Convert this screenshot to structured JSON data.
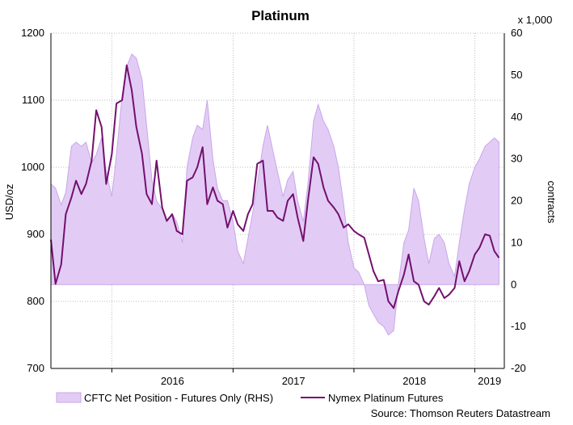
{
  "chart_data": {
    "type": "area",
    "title": "Platinum",
    "ylabel_left": "USD/oz",
    "ylabel_right": "contracts",
    "right_axis_multiplier": "x 1,000",
    "source": "Source: Thomson Reuters Datastream",
    "ylim_left": [
      700,
      1200
    ],
    "ylim_right": [
      -20,
      60
    ],
    "yticks_left": [
      "1200",
      "1100",
      "1000",
      "900",
      "800",
      "700"
    ],
    "yticks_right": [
      "60",
      "50",
      "40",
      "30",
      "20",
      "10",
      "0",
      "-10",
      "-20"
    ],
    "xlim": [
      "2015-07-01",
      "2019-03-31"
    ],
    "x_year_labels": [
      {
        "label": "2016",
        "date": "2016-01-01"
      },
      {
        "label": "2017",
        "date": "2017-01-01"
      },
      {
        "label": "2018",
        "date": "2018-01-01"
      },
      {
        "label": "2019",
        "date": "2019-01-01"
      }
    ],
    "grid": true,
    "legend": "bottom",
    "colors": {
      "area_fill": "#e2ccf5",
      "area_edge": "#c9a6ea",
      "line": "#73106e",
      "grid": "#bdbdbd"
    },
    "series": [
      {
        "name": "CFTC Net Position - Futures Only (RHS)",
        "axis": "right",
        "type": "area",
        "points": [
          [
            "2015-07-01",
            24
          ],
          [
            "2015-07-15",
            23
          ],
          [
            "2015-08-01",
            19
          ],
          [
            "2015-08-15",
            22
          ],
          [
            "2015-09-01",
            33
          ],
          [
            "2015-09-15",
            34
          ],
          [
            "2015-10-01",
            33
          ],
          [
            "2015-10-15",
            34
          ],
          [
            "2015-11-01",
            29
          ],
          [
            "2015-11-15",
            31
          ],
          [
            "2015-12-01",
            35
          ],
          [
            "2015-12-15",
            27
          ],
          [
            "2016-01-01",
            21
          ],
          [
            "2016-01-15",
            31
          ],
          [
            "2016-02-01",
            45
          ],
          [
            "2016-02-15",
            52
          ],
          [
            "2016-03-01",
            55
          ],
          [
            "2016-03-15",
            54
          ],
          [
            "2016-04-01",
            49
          ],
          [
            "2016-04-15",
            38
          ],
          [
            "2016-05-01",
            25
          ],
          [
            "2016-05-15",
            20
          ],
          [
            "2016-06-01",
            18
          ],
          [
            "2016-06-15",
            15
          ],
          [
            "2016-07-01",
            17
          ],
          [
            "2016-07-15",
            15
          ],
          [
            "2016-08-01",
            10
          ],
          [
            "2016-08-15",
            28
          ],
          [
            "2016-09-01",
            35
          ],
          [
            "2016-09-15",
            38
          ],
          [
            "2016-10-01",
            37
          ],
          [
            "2016-10-15",
            44
          ],
          [
            "2016-11-01",
            30
          ],
          [
            "2016-11-15",
            23
          ],
          [
            "2016-12-01",
            20
          ],
          [
            "2016-12-15",
            20
          ],
          [
            "2017-01-01",
            15
          ],
          [
            "2017-01-15",
            8
          ],
          [
            "2017-02-01",
            5
          ],
          [
            "2017-02-15",
            11
          ],
          [
            "2017-03-01",
            17
          ],
          [
            "2017-03-15",
            24
          ],
          [
            "2017-04-01",
            33
          ],
          [
            "2017-04-15",
            38
          ],
          [
            "2017-05-01",
            32
          ],
          [
            "2017-05-15",
            27
          ],
          [
            "2017-06-01",
            21
          ],
          [
            "2017-06-15",
            25
          ],
          [
            "2017-07-01",
            27
          ],
          [
            "2017-07-15",
            20
          ],
          [
            "2017-08-01",
            15
          ],
          [
            "2017-08-15",
            24
          ],
          [
            "2017-09-01",
            39
          ],
          [
            "2017-09-15",
            43
          ],
          [
            "2017-10-01",
            39
          ],
          [
            "2017-10-15",
            37
          ],
          [
            "2017-11-01",
            33
          ],
          [
            "2017-11-15",
            28
          ],
          [
            "2017-12-01",
            19
          ],
          [
            "2017-12-15",
            10
          ],
          [
            "2018-01-01",
            4
          ],
          [
            "2018-01-15",
            3
          ],
          [
            "2018-02-01",
            0
          ],
          [
            "2018-02-15",
            -5
          ],
          [
            "2018-03-01",
            -7
          ],
          [
            "2018-03-15",
            -9
          ],
          [
            "2018-04-01",
            -10
          ],
          [
            "2018-04-15",
            -12
          ],
          [
            "2018-05-01",
            -11
          ],
          [
            "2018-05-15",
            0
          ],
          [
            "2018-06-01",
            10
          ],
          [
            "2018-06-15",
            13
          ],
          [
            "2018-07-01",
            23
          ],
          [
            "2018-07-15",
            20
          ],
          [
            "2018-08-01",
            11
          ],
          [
            "2018-08-15",
            5
          ],
          [
            "2018-09-01",
            11
          ],
          [
            "2018-09-15",
            12
          ],
          [
            "2018-10-01",
            10
          ],
          [
            "2018-10-15",
            5
          ],
          [
            "2018-11-01",
            2
          ],
          [
            "2018-11-15",
            10
          ],
          [
            "2018-12-01",
            18
          ],
          [
            "2018-12-15",
            24
          ],
          [
            "2019-01-01",
            28
          ],
          [
            "2019-01-15",
            30
          ],
          [
            "2019-02-01",
            33
          ],
          [
            "2019-02-15",
            34
          ],
          [
            "2019-03-01",
            35
          ],
          [
            "2019-03-15",
            34
          ]
        ]
      },
      {
        "name": "Nymex Platinum Futures",
        "axis": "left",
        "type": "line",
        "points": [
          [
            "2015-07-01",
            892
          ],
          [
            "2015-07-15",
            826
          ],
          [
            "2015-08-01",
            855
          ],
          [
            "2015-08-15",
            930
          ],
          [
            "2015-09-01",
            955
          ],
          [
            "2015-09-15",
            980
          ],
          [
            "2015-10-01",
            960
          ],
          [
            "2015-10-15",
            975
          ],
          [
            "2015-11-01",
            1010
          ],
          [
            "2015-11-15",
            1085
          ],
          [
            "2015-12-01",
            1060
          ],
          [
            "2015-12-15",
            975
          ],
          [
            "2016-01-01",
            1020
          ],
          [
            "2016-01-15",
            1095
          ],
          [
            "2016-02-01",
            1100
          ],
          [
            "2016-02-15",
            1152
          ],
          [
            "2016-03-01",
            1115
          ],
          [
            "2016-03-15",
            1060
          ],
          [
            "2016-04-01",
            1020
          ],
          [
            "2016-04-15",
            960
          ],
          [
            "2016-05-01",
            945
          ],
          [
            "2016-05-15",
            1010
          ],
          [
            "2016-06-01",
            940
          ],
          [
            "2016-06-15",
            920
          ],
          [
            "2016-07-01",
            930
          ],
          [
            "2016-07-15",
            905
          ],
          [
            "2016-08-01",
            900
          ],
          [
            "2016-08-15",
            980
          ],
          [
            "2016-09-01",
            985
          ],
          [
            "2016-09-15",
            1000
          ],
          [
            "2016-10-01",
            1030
          ],
          [
            "2016-10-15",
            945
          ],
          [
            "2016-11-01",
            970
          ],
          [
            "2016-11-15",
            950
          ],
          [
            "2016-12-01",
            945
          ],
          [
            "2016-12-15",
            910
          ],
          [
            "2017-01-01",
            935
          ],
          [
            "2017-01-15",
            915
          ],
          [
            "2017-02-01",
            905
          ],
          [
            "2017-02-15",
            930
          ],
          [
            "2017-03-01",
            945
          ],
          [
            "2017-03-15",
            1005
          ],
          [
            "2017-04-01",
            1010
          ],
          [
            "2017-04-15",
            935
          ],
          [
            "2017-05-01",
            935
          ],
          [
            "2017-05-15",
            925
          ],
          [
            "2017-06-01",
            920
          ],
          [
            "2017-06-15",
            950
          ],
          [
            "2017-07-01",
            960
          ],
          [
            "2017-07-15",
            925
          ],
          [
            "2017-08-01",
            890
          ],
          [
            "2017-08-15",
            950
          ],
          [
            "2017-09-01",
            1015
          ],
          [
            "2017-09-15",
            1005
          ],
          [
            "2017-10-01",
            970
          ],
          [
            "2017-10-15",
            950
          ],
          [
            "2017-11-01",
            940
          ],
          [
            "2017-11-15",
            930
          ],
          [
            "2017-12-01",
            910
          ],
          [
            "2017-12-15",
            915
          ],
          [
            "2018-01-01",
            905
          ],
          [
            "2018-01-15",
            900
          ],
          [
            "2018-02-01",
            895
          ],
          [
            "2018-02-15",
            870
          ],
          [
            "2018-03-01",
            845
          ],
          [
            "2018-03-15",
            830
          ],
          [
            "2018-04-01",
            832
          ],
          [
            "2018-04-15",
            800
          ],
          [
            "2018-05-01",
            790
          ],
          [
            "2018-05-15",
            815
          ],
          [
            "2018-06-01",
            840
          ],
          [
            "2018-06-15",
            870
          ],
          [
            "2018-07-01",
            830
          ],
          [
            "2018-07-15",
            825
          ],
          [
            "2018-08-01",
            800
          ],
          [
            "2018-08-15",
            795
          ],
          [
            "2018-09-01",
            808
          ],
          [
            "2018-09-15",
            820
          ],
          [
            "2018-10-01",
            805
          ],
          [
            "2018-10-15",
            810
          ],
          [
            "2018-11-01",
            820
          ],
          [
            "2018-11-15",
            860
          ],
          [
            "2018-12-01",
            830
          ],
          [
            "2018-12-15",
            845
          ],
          [
            "2019-01-01",
            870
          ],
          [
            "2019-01-15",
            880
          ],
          [
            "2019-02-01",
            900
          ],
          [
            "2019-02-15",
            898
          ],
          [
            "2019-03-01",
            875
          ],
          [
            "2019-03-15",
            865
          ]
        ]
      }
    ]
  }
}
